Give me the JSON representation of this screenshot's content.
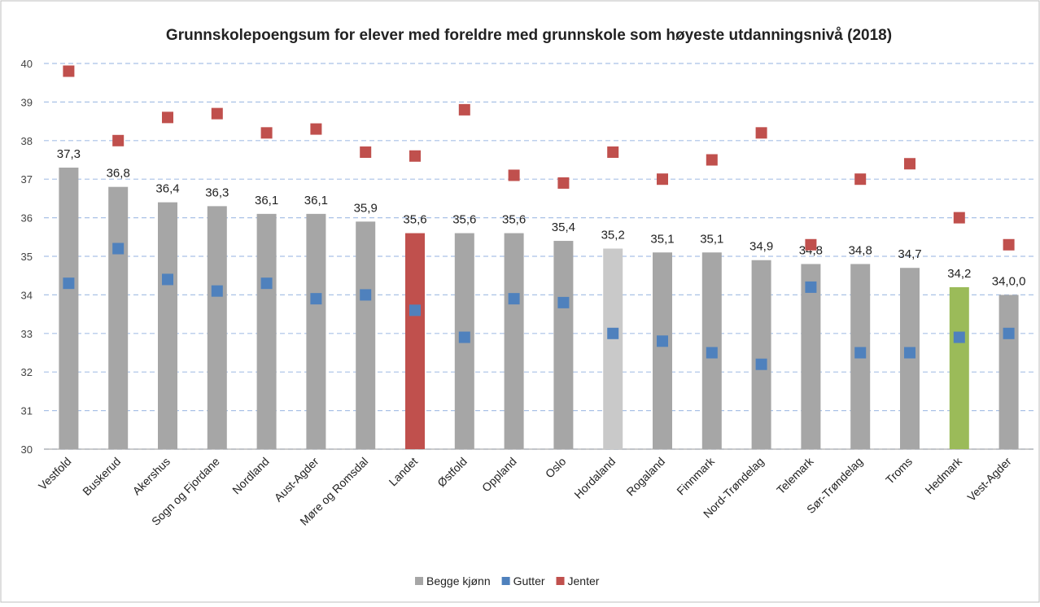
{
  "chart_data": {
    "type": "bar",
    "title": "Grunnskolepoengsum  for elever med foreldre med grunnskole som høyeste utdanningsnivå (2018)",
    "categories": [
      "Vestfold",
      "Buskerud",
      "Akershus",
      "Sogn og Fjordane",
      "Nordland",
      "Aust-Agder",
      "Møre og Romsdal",
      "Landet",
      "Østfold",
      "Oppland",
      "Oslo",
      "Hordaland",
      "Rogaland",
      "Finnmark",
      "Nord-Trøndelag",
      "Telemark",
      "Sør-Trøndelag",
      "Troms",
      "Hedmark",
      "Vest-Agder"
    ],
    "series": [
      {
        "name": "Begge kjønn",
        "type": "bar",
        "color": "#a6a6a6",
        "colors": [
          "#a6a6a6",
          "#a6a6a6",
          "#a6a6a6",
          "#a6a6a6",
          "#a6a6a6",
          "#a6a6a6",
          "#a6a6a6",
          "#c0504d",
          "#a6a6a6",
          "#a6a6a6",
          "#a6a6a6",
          "#c9c9c9",
          "#a6a6a6",
          "#a6a6a6",
          "#a6a6a6",
          "#a6a6a6",
          "#a6a6a6",
          "#a6a6a6",
          "#9bbb59",
          "#a6a6a6"
        ],
        "values": [
          37.3,
          36.8,
          36.4,
          36.3,
          36.1,
          36.1,
          35.9,
          35.6,
          35.6,
          35.6,
          35.4,
          35.2,
          35.1,
          35.1,
          34.9,
          34.8,
          34.8,
          34.7,
          34.2,
          34.0
        ],
        "value_labels": [
          "37,3",
          "36,8",
          "36,4",
          "36,3",
          "36,1",
          "36,1",
          "35,9",
          "35,6",
          "35,6",
          "35,6",
          "35,4",
          "35,2",
          "35,1",
          "35,1",
          "34,9",
          "34,8",
          "34,8",
          "34,7",
          "34,2",
          "34,0,0"
        ]
      },
      {
        "name": "Gutter",
        "type": "scatter",
        "color": "#4f81bd",
        "values": [
          34.3,
          35.2,
          34.4,
          34.1,
          34.3,
          33.9,
          34.0,
          33.6,
          32.9,
          33.9,
          33.8,
          33.0,
          32.8,
          32.5,
          32.2,
          34.2,
          32.5,
          32.5,
          32.9,
          33.0
        ]
      },
      {
        "name": "Jenter",
        "type": "scatter",
        "color": "#c0504d",
        "values": [
          39.8,
          38.0,
          38.6,
          38.7,
          38.2,
          38.3,
          37.7,
          37.6,
          38.8,
          37.1,
          36.9,
          37.7,
          37.0,
          37.5,
          38.2,
          35.3,
          37.0,
          37.4,
          36.0,
          35.3
        ]
      }
    ],
    "ylim": [
      30,
      40
    ],
    "yticks": [
      30,
      31,
      32,
      33,
      34,
      35,
      36,
      37,
      38,
      39,
      40
    ],
    "grid": true,
    "legend": "bottom"
  }
}
